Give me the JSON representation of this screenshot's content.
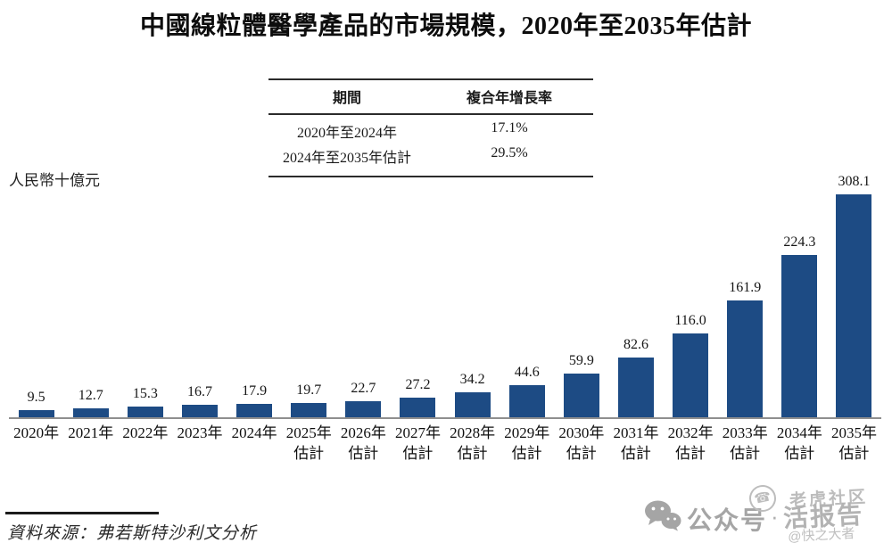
{
  "title": "中國線粒體醫學產品的市場規模，2020年至2035年估計",
  "unit_label": "人民幣十億元",
  "cagr_table": {
    "headers": [
      "期間",
      "複合年增長率"
    ],
    "rows": [
      [
        "2020年至2024年",
        "17.1%"
      ],
      [
        "2024年至2035年估計",
        "29.5%"
      ]
    ]
  },
  "chart_data": {
    "type": "bar",
    "title": "中國線粒體醫學產品的市場規模，2020年至2035年估計",
    "xlabel": "",
    "ylabel": "人民幣十億元",
    "categories": [
      "2020年",
      "2021年",
      "2022年",
      "2023年",
      "2024年",
      "2025年估計",
      "2026年估計",
      "2027年估計",
      "2028年估計",
      "2029年估計",
      "2030年估計",
      "2031年估計",
      "2032年估計",
      "2033年估計",
      "2034年估計",
      "2035年估計"
    ],
    "x_tick_lines": [
      [
        "2020年"
      ],
      [
        "2021年"
      ],
      [
        "2022年"
      ],
      [
        "2023年"
      ],
      [
        "2024年"
      ],
      [
        "2025年",
        "估計"
      ],
      [
        "2026年",
        "估計"
      ],
      [
        "2027年",
        "估計"
      ],
      [
        "2028年",
        "估計"
      ],
      [
        "2029年",
        "估計"
      ],
      [
        "2030年",
        "估計"
      ],
      [
        "2031年",
        "估計"
      ],
      [
        "2032年",
        "估計"
      ],
      [
        "2033年",
        "估計"
      ],
      [
        "2034年",
        "估計"
      ],
      [
        "2035年",
        "估計"
      ]
    ],
    "values": [
      9.5,
      12.7,
      15.3,
      16.7,
      17.9,
      19.7,
      22.7,
      27.2,
      34.2,
      44.6,
      59.9,
      82.6,
      116.0,
      161.9,
      224.3,
      308.1
    ],
    "value_labels": [
      "9.5",
      "12.7",
      "15.3",
      "16.7",
      "17.9",
      "19.7",
      "22.7",
      "27.2",
      "34.2",
      "44.6",
      "59.9",
      "82.6",
      "116.0",
      "161.9",
      "224.3",
      "308.1"
    ],
    "ylim": [
      0,
      308.1
    ],
    "grid": false,
    "legend": null,
    "bar_color": "#1d4b84"
  },
  "source": "資料來源：弗若斯特沙利文分析",
  "watermark": {
    "wechat_icon": "wechat-logo",
    "wechat_label": "公众号",
    "separator": "·",
    "phone_icon": "phone-in-circle",
    "stamp_line1": "老虎社区",
    "stamp_line2": "活报告",
    "handle": "@快之大者"
  }
}
